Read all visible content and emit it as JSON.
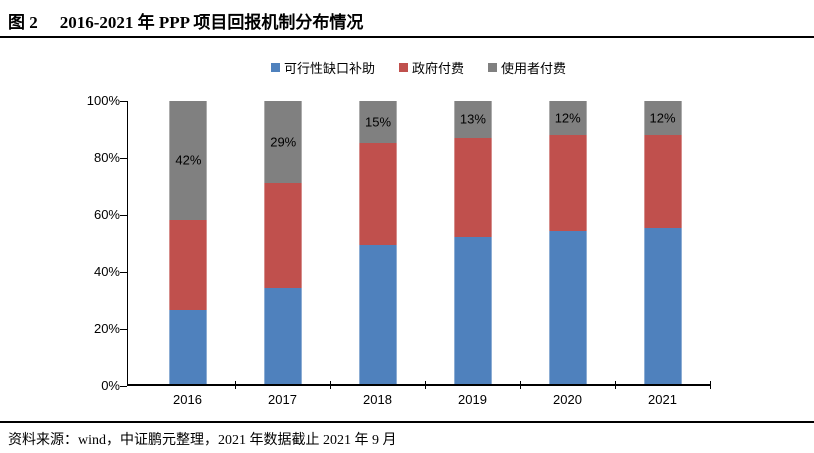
{
  "title": {
    "figure_label": "图 2",
    "text": "2016-2021 年 PPP 项目回报机制分布情况"
  },
  "source_note": "资料来源：wind，中证鹏元整理，2021 年数据截止 2021 年 9 月",
  "chart_data": {
    "type": "bar",
    "subtype": "stacked-100-percent",
    "categories": [
      "2016",
      "2017",
      "2018",
      "2019",
      "2020",
      "2021"
    ],
    "series": [
      {
        "name": "可行性缺口补助",
        "color": "#4F81BD",
        "values": [
          26,
          34,
          49,
          52,
          54,
          55
        ]
      },
      {
        "name": "政府付费",
        "color": "#C0504D",
        "values": [
          32,
          37,
          36,
          35,
          34,
          33
        ]
      },
      {
        "name": "使用者付费",
        "color": "#808080",
        "values": [
          42,
          29,
          15,
          13,
          12,
          12
        ],
        "data_labels": [
          "42%",
          "29%",
          "15%",
          "13%",
          "12%",
          "12%"
        ]
      }
    ],
    "y_ticks": [
      "0%",
      "20%",
      "40%",
      "60%",
      "80%",
      "100%"
    ],
    "ylim": [
      0,
      100
    ],
    "xlabel": "",
    "ylabel": "",
    "grid": false,
    "legend_position": "top"
  }
}
